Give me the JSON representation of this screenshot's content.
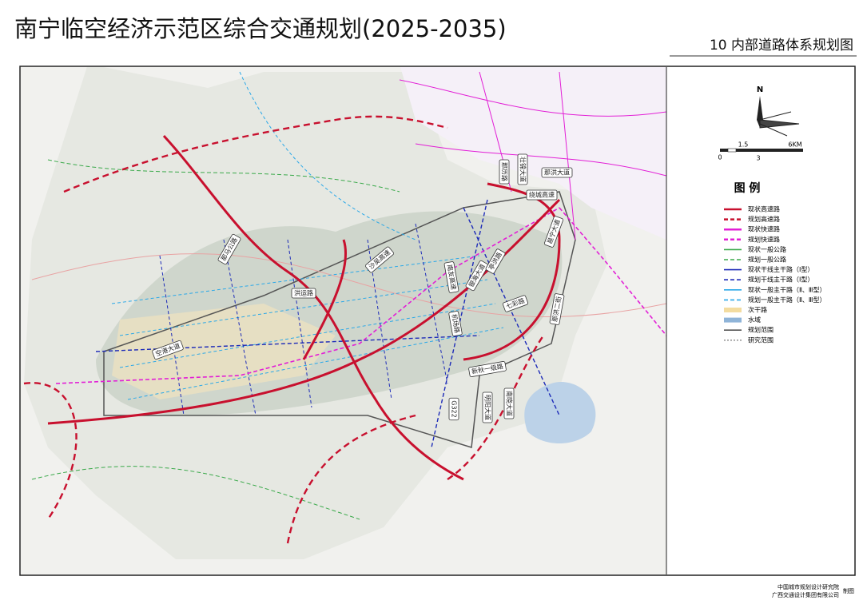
{
  "header": {
    "title": "南宁临空经济示范区综合交通规划(2025-2035)",
    "subtitle": "10 内部道路体系规划图"
  },
  "compass": {
    "north": "N"
  },
  "scale_bar": {
    "labels": [
      "0",
      "1.5",
      "3",
      "6KM"
    ]
  },
  "legend": {
    "title": "图 例",
    "items": [
      {
        "label": "现状高速路",
        "color": "#c8102e",
        "dash": "none"
      },
      {
        "label": "规划高速路",
        "color": "#c8102e",
        "dash": "5 3"
      },
      {
        "label": "现状快速路",
        "color": "#e21fd6",
        "dash": "none"
      },
      {
        "label": "规划快速路",
        "color": "#e21fd6",
        "dash": "5 3"
      },
      {
        "label": "现状一般公路",
        "color": "#3aa94a",
        "dash": "none"
      },
      {
        "label": "规划一般公路",
        "color": "#3aa94a",
        "dash": "5 3"
      },
      {
        "label": "现状干线主干路（Ⅰ型）",
        "color": "#1d2bb8",
        "dash": "none"
      },
      {
        "label": "规划干线主干路（Ⅰ型）",
        "color": "#1d2bb8",
        "dash": "5 3"
      },
      {
        "label": "现状一般主干路（Ⅱ、Ⅲ型）",
        "color": "#2aa8e8",
        "dash": "none"
      },
      {
        "label": "规划一般主干路（Ⅱ、Ⅲ型）",
        "color": "#2aa8e8",
        "dash": "5 3"
      },
      {
        "label": "次干路",
        "color": "#f3dca0",
        "dash": "none"
      },
      {
        "label": "水域",
        "color": "#8fb4d8",
        "dash": "none"
      },
      {
        "label": "规划范围",
        "color": "#555555",
        "dash": "none"
      },
      {
        "label": "研究范围",
        "color": "#999999",
        "dash": "2 2"
      }
    ]
  },
  "road_labels": [
    "那历路",
    "壮锦大道",
    "那洪大道",
    "绕城高速",
    "邕宁大道",
    "沙吴高速",
    "洪运路",
    "南友高速",
    "银海大道",
    "亭洪路",
    "七彩路",
    "机场路",
    "那洪二街",
    "空港大道",
    "新秋一级路",
    "G322",
    "明阳大道",
    "南晓大道",
    "那马公路"
  ],
  "footer": {
    "org1": "中国城市规划设计研究院",
    "org2": "广西交通设计集团有限公司",
    "note": "制图"
  }
}
